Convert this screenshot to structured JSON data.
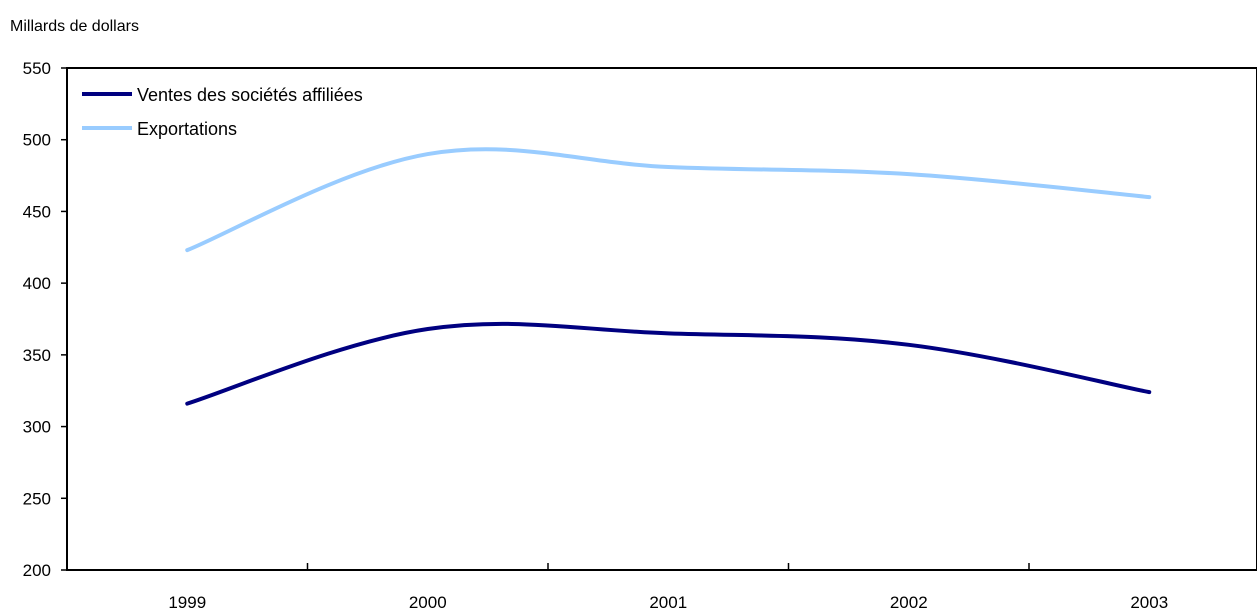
{
  "chart_data": {
    "type": "line",
    "title": "",
    "ylabel": "Millards de dollars",
    "xlabel": "",
    "categories": [
      "1999",
      "2000",
      "2001",
      "2002",
      "2003"
    ],
    "ylim": [
      200,
      550
    ],
    "yticks": [
      200,
      250,
      300,
      350,
      400,
      450,
      500,
      550
    ],
    "grid": false,
    "legend_position": "top-left",
    "series": [
      {
        "name": "Ventes des sociétés affiliées",
        "color": "#000080",
        "values": [
          316,
          368,
          365,
          357,
          324
        ]
      },
      {
        "name": "Exportations",
        "color": "#99ccff",
        "values": [
          423,
          490,
          481,
          476,
          460
        ]
      }
    ]
  }
}
